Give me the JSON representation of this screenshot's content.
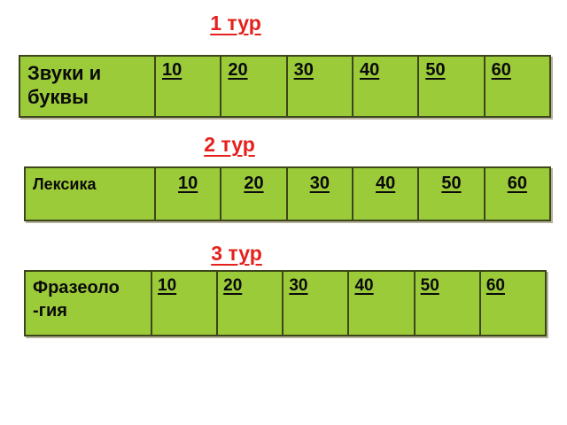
{
  "colors": {
    "page_bg": "#ffffff",
    "cell_green": "#9ccb3a",
    "table_border": "#3c461b",
    "title_red": "#e4211d",
    "text": "#0a0a0a"
  },
  "rounds": [
    {
      "title": "1 тур",
      "category": "Звуки и\nбуквы",
      "values": [
        "10",
        "20",
        "30",
        "40",
        "50",
        "60"
      ]
    },
    {
      "title": "2 тур",
      "category": "Лексика",
      "values": [
        "10",
        "20",
        "30",
        "40",
        "50",
        "60"
      ]
    },
    {
      "title": "3 тур",
      "category": "Фразеоло\n-гия",
      "values": [
        "10",
        "20",
        "30",
        "40",
        "50",
        "60"
      ]
    }
  ]
}
